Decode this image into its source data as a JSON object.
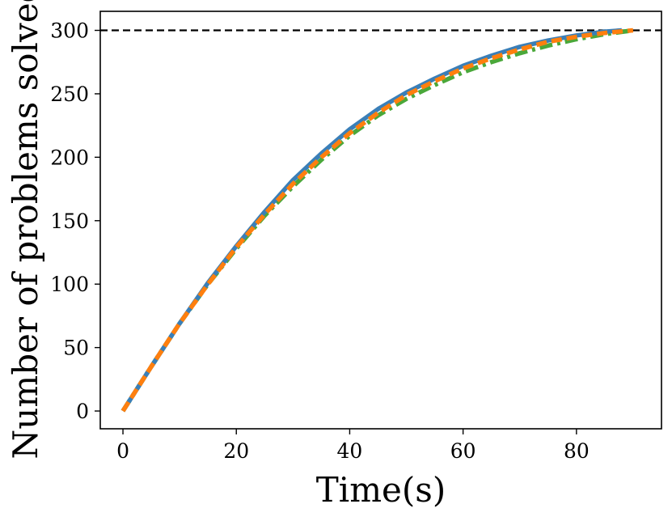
{
  "chart_data": {
    "type": "line",
    "xlabel": "Time(s)",
    "ylabel": "Number of problems solved",
    "xlim": [
      -4,
      95
    ],
    "ylim": [
      -14,
      315
    ],
    "x_ticks": [
      0,
      20,
      40,
      60,
      80
    ],
    "y_ticks": [
      0,
      50,
      100,
      150,
      200,
      250,
      300
    ],
    "grid": false,
    "legend": "none",
    "reference_line": {
      "y": 300,
      "style": "dashed",
      "color": "#000000"
    },
    "series": [
      {
        "color": "#3a7fb8",
        "style": "solid",
        "x": [
          0,
          5,
          10,
          15,
          20,
          25,
          30,
          35,
          40,
          45,
          50,
          55,
          60,
          65,
          70,
          75,
          80,
          85,
          88
        ],
        "y": [
          0,
          35,
          69,
          101,
          130,
          157,
          182,
          203,
          222,
          238,
          251,
          262,
          272,
          280,
          287,
          292,
          296,
          299,
          300
        ]
      },
      {
        "color": "#4aa83a",
        "style": "dashdot",
        "x": [
          0,
          5,
          10,
          15,
          20,
          25,
          30,
          35,
          40,
          45,
          50,
          55,
          60,
          65,
          70,
          75,
          80,
          85,
          90
        ],
        "y": [
          0,
          35,
          69,
          100,
          128,
          154,
          177,
          198,
          217,
          233,
          246,
          257,
          267,
          275,
          282,
          288,
          293,
          297,
          300
        ]
      },
      {
        "color": "#ff7f0e",
        "style": "dashed",
        "x": [
          0,
          5,
          10,
          15,
          20,
          25,
          30,
          35,
          40,
          45,
          50,
          55,
          60,
          65,
          70,
          75,
          80,
          85,
          90
        ],
        "y": [
          0,
          35,
          69,
          100,
          129,
          155,
          179,
          200,
          219,
          235,
          249,
          260,
          270,
          278,
          285,
          291,
          295,
          298,
          300
        ]
      }
    ]
  }
}
